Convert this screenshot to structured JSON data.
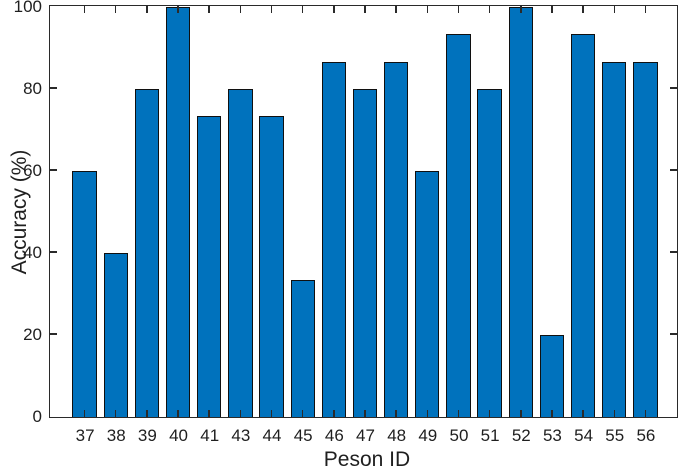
{
  "chart_data": {
    "type": "bar",
    "title": "",
    "xlabel": "Peson ID",
    "ylabel": "Accuracy (%)",
    "categories": [
      "37",
      "38",
      "39",
      "40",
      "41",
      "43",
      "44",
      "45",
      "46",
      "47",
      "48",
      "49",
      "50",
      "51",
      "52",
      "53",
      "54",
      "55",
      "56"
    ],
    "values": [
      60,
      40,
      80,
      100,
      73.3,
      80,
      73.3,
      33.3,
      86.7,
      80,
      86.7,
      60,
      93.3,
      80,
      100,
      20,
      93.3,
      86.7,
      86.7
    ],
    "ylim": [
      0,
      100
    ],
    "yticks": [
      0,
      20,
      40,
      60,
      80,
      100
    ],
    "grid": false,
    "legend": null,
    "bar_color": "#0072BD",
    "bar_edge_color": "#101010",
    "axis_color": "#2a2a2a",
    "background_color": "#ffffff"
  }
}
